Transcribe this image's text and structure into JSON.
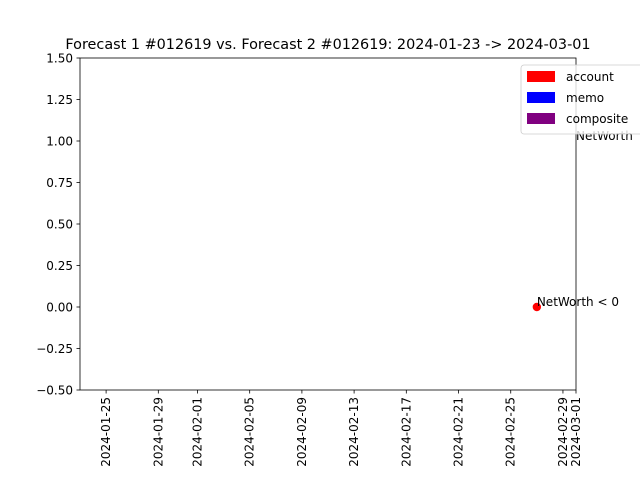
{
  "chart_data": {
    "type": "scatter",
    "title": "Forecast 1 #012619 vs. Forecast 2 #012619: 2024-01-23 -> 2024-03-01",
    "xlabel": "",
    "ylabel": "",
    "xlim": [
      "2024-01-23",
      "2024-03-01"
    ],
    "ylim": [
      -0.5,
      1.5
    ],
    "x_ticks": [
      "2024-01-25",
      "2024-01-29",
      "2024-02-01",
      "2024-02-05",
      "2024-02-09",
      "2024-02-13",
      "2024-02-17",
      "2024-02-21",
      "2024-02-25",
      "2024-02-29",
      "2024-03-01"
    ],
    "y_ticks": [
      "−0.50",
      "−0.25",
      "0.00",
      "0.25",
      "0.50",
      "0.75",
      "1.00",
      "1.25",
      "1.50"
    ],
    "grid": false,
    "legend_position": "top-right",
    "legend": [
      {
        "label": "account",
        "color": "#ff0000"
      },
      {
        "label": "memo",
        "color": "#0000ff"
      },
      {
        "label": "composite",
        "color": "#800080"
      }
    ],
    "points": [
      {
        "x": "2024-02-27",
        "y": 0,
        "label": "NetWorth < 0",
        "color": "#ff0000"
      }
    ],
    "annotations": [
      {
        "x": "2024-03-01",
        "y": 1.0,
        "label": "NetWorth"
      }
    ]
  }
}
